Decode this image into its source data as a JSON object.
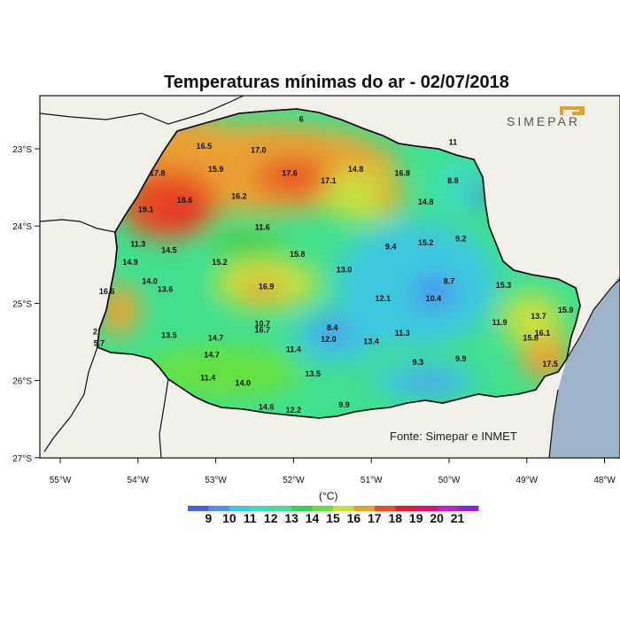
{
  "title": "Temperaturas mínimas do ar - 02/07/2018",
  "source": "Fonte: Simepar e INMET",
  "logo_text": "SIMEPAR",
  "unit": "(°C)",
  "lon_ticks": [
    "55°W",
    "54°W",
    "53°W",
    "52°W",
    "51°W",
    "50°W",
    "49°W",
    "48°W"
  ],
  "lat_ticks": [
    "23°S",
    "24°S",
    "25°S",
    "26°S",
    "27°S"
  ],
  "colorbar": {
    "labels": [
      "9",
      "10",
      "11",
      "12",
      "13",
      "14",
      "15",
      "16",
      "17",
      "18",
      "19",
      "20",
      "21"
    ],
    "colors": [
      "#4a5fe0",
      "#4f8ff0",
      "#3cc8e0",
      "#3ddcc0",
      "#40e090",
      "#3ad050",
      "#66e040",
      "#c8e040",
      "#e8a030",
      "#e85020",
      "#e02030",
      "#e01070",
      "#c020d0",
      "#9020e0"
    ]
  },
  "stations": [
    {
      "v": "16.5",
      "lon": -53.15,
      "lat": -23.0
    },
    {
      "v": "17.0",
      "lon": -52.45,
      "lat": -23.05
    },
    {
      "v": "17.8",
      "lon": -53.75,
      "lat": -23.35
    },
    {
      "v": "15.9",
      "lon": -53.0,
      "lat": -23.3
    },
    {
      "v": "17.6",
      "lon": -52.05,
      "lat": -23.35
    },
    {
      "v": "17.1",
      "lon": -51.55,
      "lat": -23.45
    },
    {
      "v": "14.8",
      "lon": -51.2,
      "lat": -23.3
    },
    {
      "v": "16.8",
      "lon": -50.6,
      "lat": -23.35
    },
    {
      "v": "8.8",
      "lon": -49.95,
      "lat": -23.45
    },
    {
      "v": "18.6",
      "lon": -53.4,
      "lat": -23.7
    },
    {
      "v": "19.1",
      "lon": -53.9,
      "lat": -23.82
    },
    {
      "v": "16.2",
      "lon": -52.7,
      "lat": -23.65
    },
    {
      "v": "14.8",
      "lon": -50.3,
      "lat": -23.72
    },
    {
      "v": "11.6",
      "lon": -52.4,
      "lat": -24.05
    },
    {
      "v": "11.3",
      "lon": -54.0,
      "lat": -24.27
    },
    {
      "v": "14.5",
      "lon": -53.6,
      "lat": -24.35
    },
    {
      "v": "9.4",
      "lon": -50.75,
      "lat": -24.3
    },
    {
      "v": "15.2",
      "lon": -50.3,
      "lat": -24.25
    },
    {
      "v": "9.2",
      "lon": -49.85,
      "lat": -24.2
    },
    {
      "v": "14.9",
      "lon": -54.1,
      "lat": -24.5
    },
    {
      "v": "15.2",
      "lon": -52.95,
      "lat": -24.5
    },
    {
      "v": "15.8",
      "lon": -51.95,
      "lat": -24.4
    },
    {
      "v": "13.0",
      "lon": -51.35,
      "lat": -24.6
    },
    {
      "v": "14.0",
      "lon": -53.85,
      "lat": -24.75
    },
    {
      "v": "13.6",
      "lon": -53.65,
      "lat": -24.85
    },
    {
      "v": "16.9",
      "lon": -52.35,
      "lat": -24.82
    },
    {
      "v": "8.7",
      "lon": -50.0,
      "lat": -24.75
    },
    {
      "v": "15.3",
      "lon": -49.3,
      "lat": -24.8
    },
    {
      "v": "16.6",
      "lon": -54.4,
      "lat": -24.88
    },
    {
      "v": "12.1",
      "lon": -50.85,
      "lat": -24.97
    },
    {
      "v": "10.4",
      "lon": -50.2,
      "lat": -24.97
    },
    {
      "v": "13.7",
      "lon": -48.85,
      "lat": -25.2
    },
    {
      "v": "15.9",
      "lon": -48.5,
      "lat": -25.12
    },
    {
      "v": "10.7",
      "lon": -52.4,
      "lat": -25.3
    },
    {
      "v": "16.7",
      "lon": -52.4,
      "lat": -25.38
    },
    {
      "v": "8.4",
      "lon": -51.5,
      "lat": -25.35
    },
    {
      "v": "11.9",
      "lon": -49.35,
      "lat": -25.28
    },
    {
      "v": "13.5",
      "lon": -53.6,
      "lat": -25.45
    },
    {
      "v": "14.7",
      "lon": -53.0,
      "lat": -25.48
    },
    {
      "v": "12.0",
      "lon": -51.55,
      "lat": -25.5
    },
    {
      "v": "13.4",
      "lon": -51.0,
      "lat": -25.53
    },
    {
      "v": "11.3",
      "lon": -50.6,
      "lat": -25.42
    },
    {
      "v": "16.1",
      "lon": -48.8,
      "lat": -25.42
    },
    {
      "v": "15.8",
      "lon": -48.95,
      "lat": -25.48
    },
    {
      "v": "5.7",
      "lon": -54.5,
      "lat": -25.55
    },
    {
      "v": "2",
      "lon": -54.55,
      "lat": -25.4
    },
    {
      "v": "14.7",
      "lon": -53.05,
      "lat": -25.7
    },
    {
      "v": "11.4",
      "lon": -52.0,
      "lat": -25.63
    },
    {
      "v": "9.9",
      "lon": -49.85,
      "lat": -25.75
    },
    {
      "v": "9.3",
      "lon": -50.4,
      "lat": -25.8
    },
    {
      "v": "17.5",
      "lon": -48.7,
      "lat": -25.82
    },
    {
      "v": "13.5",
      "lon": -51.75,
      "lat": -25.95
    },
    {
      "v": "11.4",
      "lon": -53.1,
      "lat": -26.0
    },
    {
      "v": "14.0",
      "lon": -52.65,
      "lat": -26.07
    },
    {
      "v": "14.6",
      "lon": -52.35,
      "lat": -26.38
    },
    {
      "v": "12.2",
      "lon": -52.0,
      "lat": -26.42
    },
    {
      "v": "9.9",
      "lon": -51.35,
      "lat": -26.35
    },
    {
      "v": "6",
      "lon": -51.9,
      "lat": -22.65
    },
    {
      "v": "11",
      "lon": -49.95,
      "lat": -22.95
    }
  ]
}
